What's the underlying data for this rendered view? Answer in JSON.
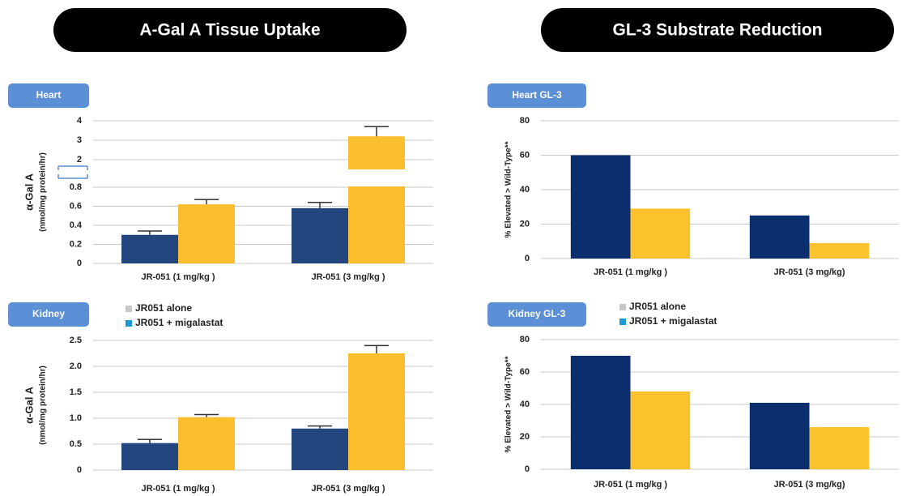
{
  "headers": [
    "A-Gal A Tissue Uptake",
    "GL-3 Substrate Reduction"
  ],
  "chart_data": [
    {
      "type": "bar",
      "title": "Heart",
      "ylabel": [
        "α-Gal A",
        "(nmol/mg protein/hr)"
      ],
      "categories": [
        "JR-051 (1 mg/kg )",
        "JR-051 (3 mg/kg )"
      ],
      "series": [
        {
          "name": "JR051 alone",
          "color": "#23467f",
          "values": [
            0.3,
            0.58
          ],
          "errors": [
            0.04,
            0.06
          ]
        },
        {
          "name": "JR051 + migalastat",
          "color": "#fbbf2e",
          "values": [
            0.62,
            3.2
          ],
          "errors": [
            0.05,
            0.5
          ]
        }
      ],
      "ylim": [
        0,
        4
      ],
      "axis_break": [
        0.8,
        2
      ],
      "yticks": [
        0,
        0.2,
        0.4,
        0.6,
        0.8,
        2,
        3,
        4
      ],
      "grid": true
    },
    {
      "type": "bar",
      "title": "Kidney",
      "ylabel": [
        "α-Gal A",
        "(nmol/mg protein/hr)"
      ],
      "categories": [
        "JR-051 (1 mg/kg )",
        "JR-051 (3 mg/kg )"
      ],
      "series": [
        {
          "name": "JR051 alone",
          "color": "#23467f",
          "legend_color": "#c8c8c8",
          "values": [
            0.52,
            0.8
          ],
          "errors": [
            0.07,
            0.05
          ]
        },
        {
          "name": "JR051 + migalastat",
          "color": "#fbbf2e",
          "legend_color": "#1a9ad6",
          "values": [
            1.02,
            2.25
          ],
          "errors": [
            0.05,
            0.15
          ]
        }
      ],
      "ylim": [
        0,
        2.5
      ],
      "yticks": [
        0,
        0.5,
        {
          "value": 1,
          "label": "1.0"
        },
        1.5,
        {
          "value": 2,
          "label": "2.0"
        },
        2.5
      ],
      "grid": true,
      "legend": true
    },
    {
      "type": "bar",
      "title": "Heart GL-3",
      "ylabel": [
        "% Elevated > Wild-Type**"
      ],
      "categories": [
        "JR-051 (1 mg/kg )",
        "JR-051 (3 mg/kg)"
      ],
      "series": [
        {
          "name": "JR051 alone",
          "color": "#0b2e6e",
          "values": [
            60,
            25
          ]
        },
        {
          "name": "JR051 + migalastat",
          "color": "#fcc22d",
          "values": [
            29,
            9
          ]
        }
      ],
      "ylim": [
        0,
        80
      ],
      "yticks": [
        0,
        20,
        40,
        60,
        80
      ],
      "grid": true
    },
    {
      "type": "bar",
      "title": "Kidney GL-3",
      "ylabel": [
        "% Elevated > Wild-Type**"
      ],
      "categories": [
        "JR-051 (1 mg/kg )",
        "JR-051 (3 mg/kg)"
      ],
      "series": [
        {
          "name": "JR051 alone",
          "color": "#0b2e6e",
          "legend_color": "#c8c8c8",
          "values": [
            70,
            41
          ]
        },
        {
          "name": "JR051 + migalastat",
          "color": "#fcc22d",
          "legend_color": "#1a9ad6",
          "values": [
            48,
            26
          ]
        }
      ],
      "ylim": [
        0,
        80
      ],
      "yticks": [
        0,
        20,
        40,
        60,
        80
      ],
      "grid": true,
      "legend": true
    }
  ]
}
